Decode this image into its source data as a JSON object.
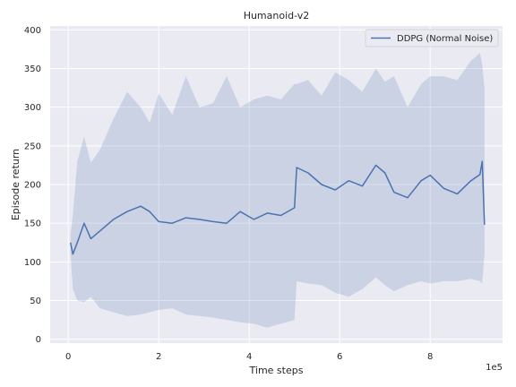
{
  "chart_data": {
    "type": "line",
    "title": "Humanoid-v2",
    "xlabel": "Time steps",
    "ylabel": "Episode return",
    "x_scale_label": "1e5",
    "xlim": [
      -0.4,
      9.6
    ],
    "ylim": [
      -5,
      405
    ],
    "xticks": [
      0,
      2,
      4,
      6,
      8
    ],
    "yticks": [
      0,
      50,
      100,
      150,
      200,
      250,
      300,
      350,
      400
    ],
    "grid": true,
    "legend_position": "top-right",
    "colors": {
      "line": "#4c72b0",
      "band": "#4c72b0",
      "background": "#eaeaf2",
      "grid": "#ffffff"
    },
    "series": [
      {
        "name": "DDPG (Normal Noise)",
        "x": [
          0.05,
          0.1,
          0.2,
          0.35,
          0.5,
          0.7,
          1.0,
          1.3,
          1.6,
          1.8,
          2.0,
          2.3,
          2.6,
          2.9,
          3.2,
          3.5,
          3.8,
          4.1,
          4.4,
          4.7,
          5.0,
          5.05,
          5.3,
          5.6,
          5.9,
          6.2,
          6.5,
          6.8,
          7.0,
          7.2,
          7.5,
          7.8,
          8.0,
          8.3,
          8.6,
          8.9,
          9.1,
          9.15,
          9.2
        ],
        "y": [
          125,
          110,
          125,
          150,
          130,
          140,
          155,
          165,
          172,
          165,
          152,
          150,
          157,
          155,
          152,
          150,
          165,
          155,
          163,
          160,
          170,
          222,
          215,
          200,
          193,
          205,
          198,
          225,
          215,
          190,
          183,
          205,
          212,
          195,
          188,
          205,
          213,
          230,
          148
        ],
        "upper": [
          135,
          160,
          230,
          262,
          228,
          245,
          285,
          320,
          300,
          280,
          318,
          290,
          340,
          300,
          305,
          340,
          300,
          310,
          315,
          310,
          330,
          330,
          335,
          315,
          345,
          335,
          320,
          350,
          333,
          340,
          300,
          330,
          340,
          340,
          335,
          360,
          370,
          355,
          325
        ],
        "lower": [
          110,
          65,
          50,
          48,
          55,
          40,
          35,
          30,
          32,
          35,
          38,
          40,
          32,
          30,
          28,
          25,
          22,
          20,
          15,
          20,
          25,
          75,
          72,
          70,
          60,
          55,
          65,
          80,
          70,
          62,
          70,
          75,
          72,
          75,
          75,
          78,
          75,
          72,
          110
        ]
      }
    ]
  }
}
